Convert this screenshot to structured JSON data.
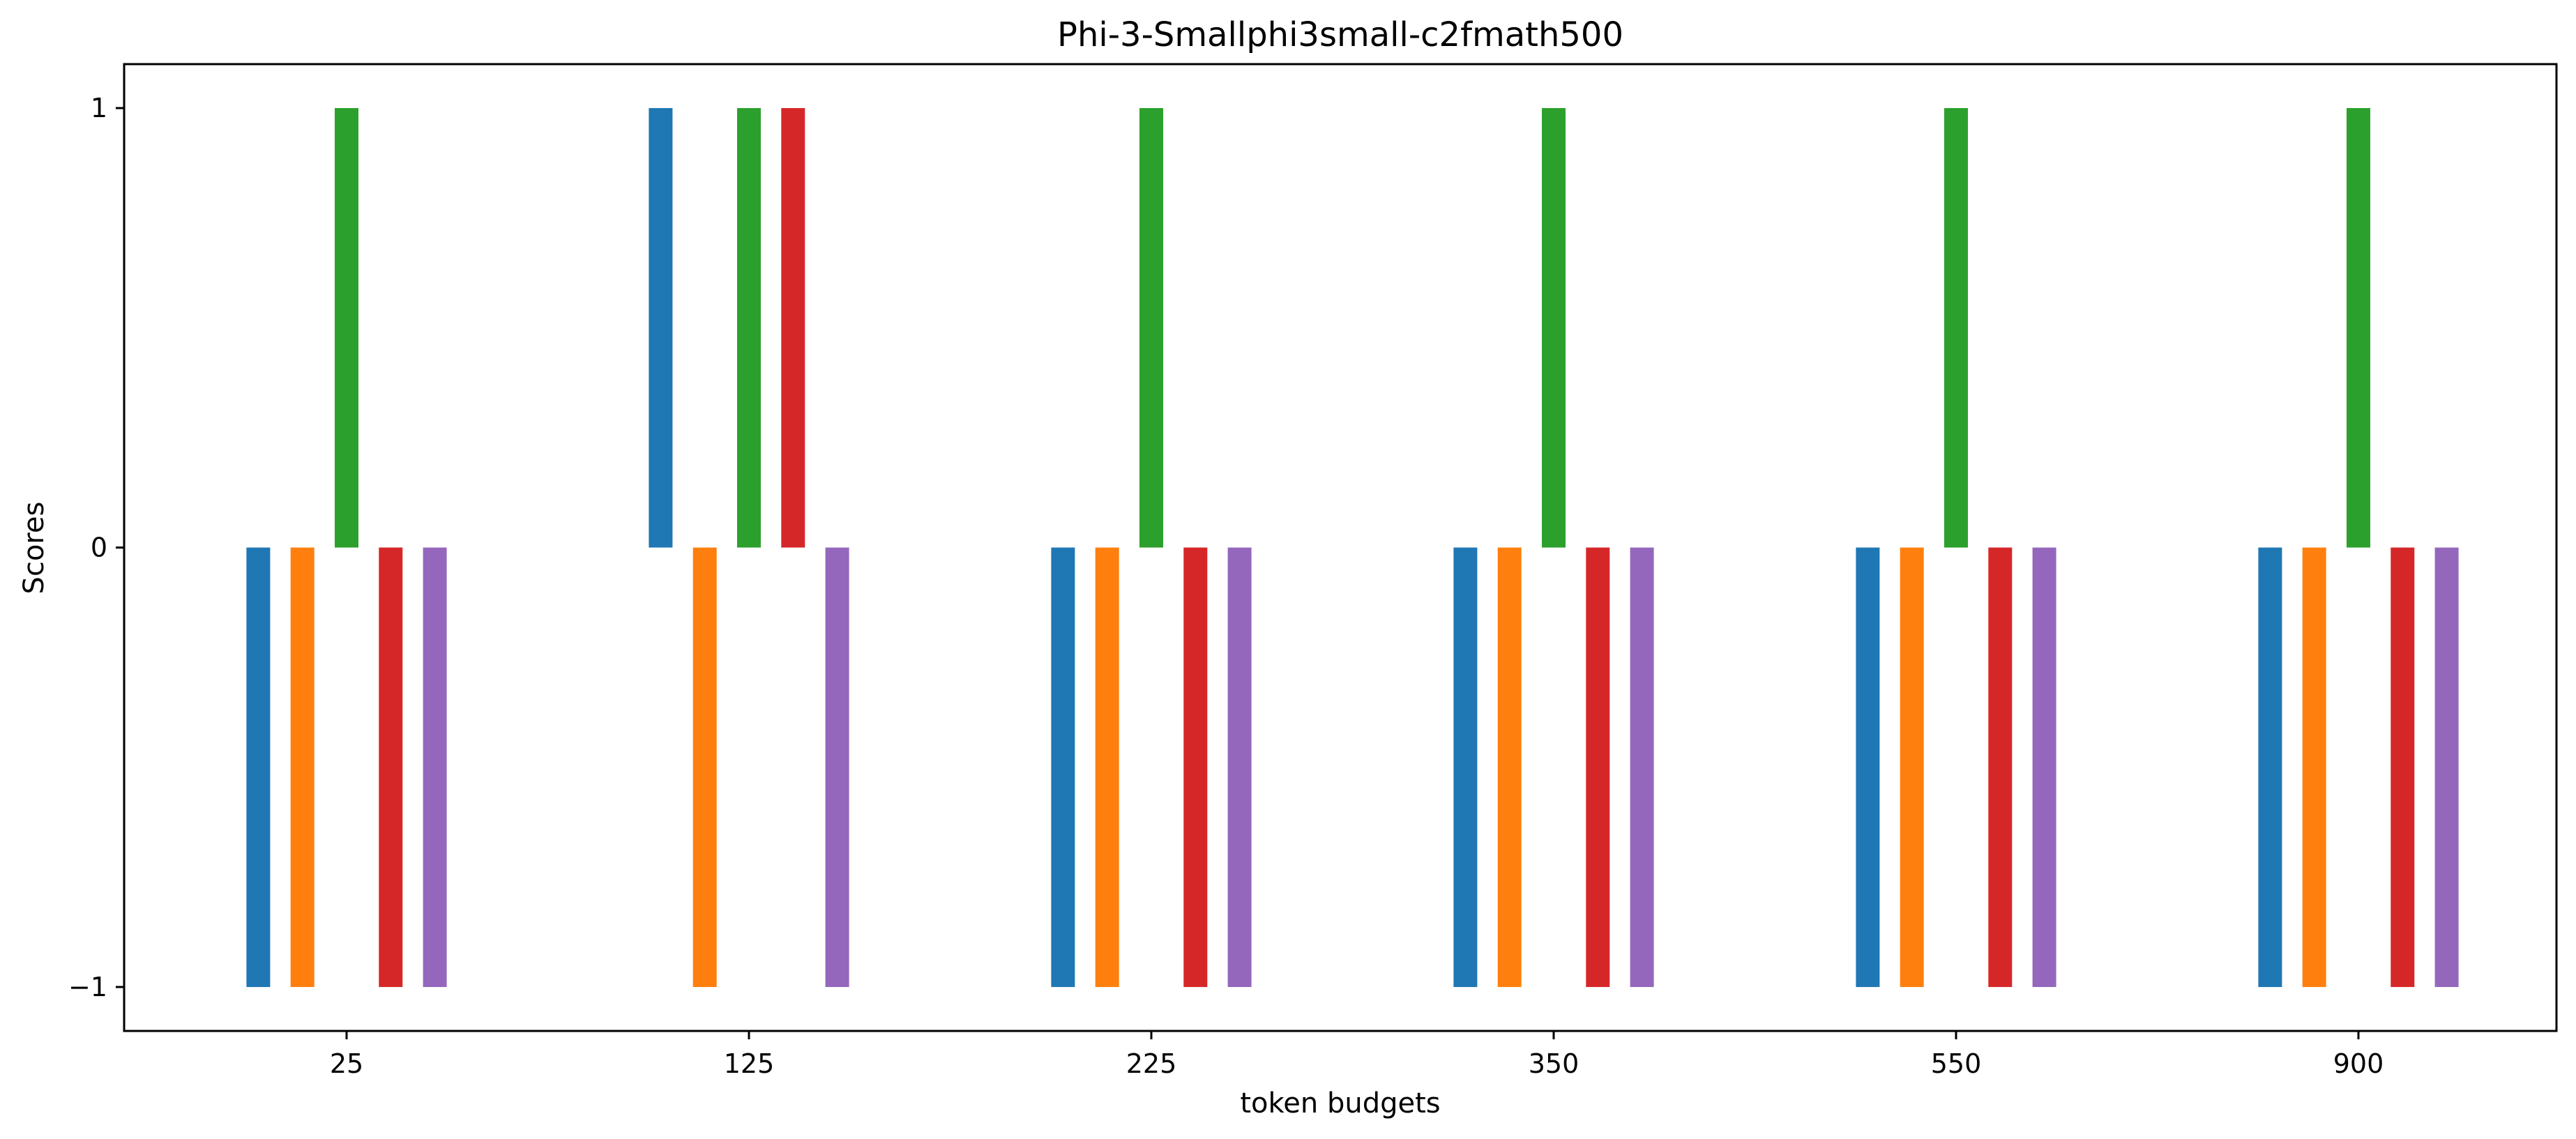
{
  "chart_data": {
    "type": "bar",
    "title": "Phi-3-Smallphi3small-c2fmath500",
    "xlabel": "token budgets",
    "ylabel": "Scores",
    "categories": [
      "25",
      "125",
      "225",
      "350",
      "550",
      "900"
    ],
    "yticks": [
      -1,
      0,
      1
    ],
    "ytick_labels": [
      "−1",
      "0",
      "1"
    ],
    "ylim": [
      -1.1,
      1.1
    ],
    "grid": false,
    "legend": "none",
    "series": [
      {
        "color": "#1f77b4",
        "values": [
          -1,
          1,
          -1,
          -1,
          -1,
          -1
        ]
      },
      {
        "color": "#ff7f0e",
        "values": [
          -1,
          -1,
          -1,
          -1,
          -1,
          -1
        ]
      },
      {
        "color": "#2ca02c",
        "values": [
          1,
          1,
          1,
          1,
          1,
          1
        ]
      },
      {
        "color": "#d62728",
        "values": [
          -1,
          1,
          -1,
          -1,
          -1,
          -1
        ]
      },
      {
        "color": "#9467bd",
        "values": [
          -1,
          -1,
          -1,
          -1,
          -1,
          -1
        ]
      }
    ]
  }
}
